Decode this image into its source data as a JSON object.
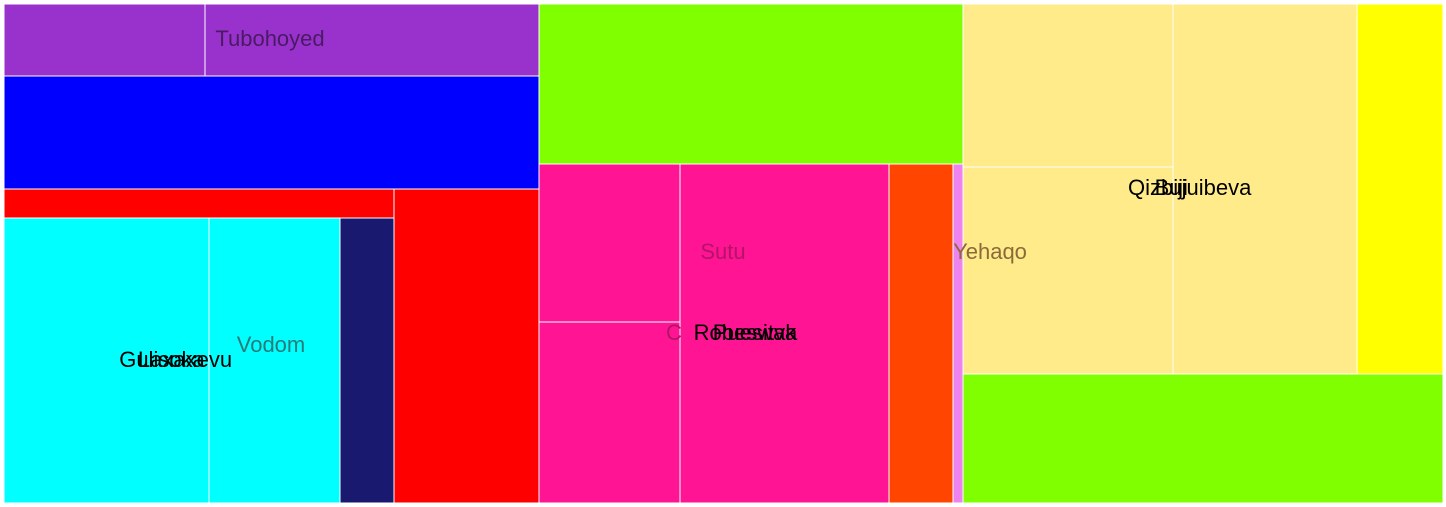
{
  "chart_data": {
    "type": "treemap",
    "title": "",
    "tiles": [
      {
        "name": "Tubohoyed-A",
        "label": "",
        "value": 7.3,
        "color": "#9932CC"
      },
      {
        "name": "Tubohoyed",
        "label": "Tubohoyed",
        "value": 11.9,
        "color": "#9932CC",
        "label_color": "#4a1a63"
      },
      {
        "name": "Blue",
        "label": "",
        "value": 27.0,
        "color": "#0000FF"
      },
      {
        "name": "Red-strip",
        "label": "",
        "value": 5.1,
        "color": "#FF0000"
      },
      {
        "name": "Red",
        "label": "",
        "value": 21.0,
        "color": "#FF0000"
      },
      {
        "name": "Gulisoka",
        "label": "Gulisoka",
        "value": 27.0,
        "color": "#00FFFF",
        "label_color": "#000000"
      },
      {
        "name": "Laxaxevu",
        "label": "Laxaxevu",
        "value": 0,
        "color": "#00FFFF",
        "label_color": "#000000"
      },
      {
        "name": "Vodom",
        "label": "Vodom",
        "value": 17.2,
        "color": "#00FFFF",
        "label_color": "#2a7a7a"
      },
      {
        "name": "Navy",
        "label": "",
        "value": 7.1,
        "color": "#191970"
      },
      {
        "name": "Green-top",
        "label": "",
        "value": 31.0,
        "color": "#7FFF00"
      },
      {
        "name": "Sutu",
        "label": "Sutu",
        "value": 10.2,
        "color": "#FF1493",
        "label_color": "#b31468"
      },
      {
        "name": "Pink-low",
        "label": "",
        "value": 12.3,
        "color": "#FF1493"
      },
      {
        "name": "Cb",
        "label": "C",
        "value": 0,
        "color": "#FF1493",
        "label_color": "#b31468"
      },
      {
        "name": "Robeswak",
        "label": "Robeswak",
        "value": 32.8,
        "color": "#FF1493",
        "label_color": "#000000"
      },
      {
        "name": "Puesitva",
        "label": "Puesitva",
        "value": 0,
        "color": "#FF1493",
        "label_color": "#000000"
      },
      {
        "name": "Orange",
        "label": "",
        "value": 10.1,
        "color": "#FF4500"
      },
      {
        "name": "Yehaqo",
        "label": "Yehaqo",
        "value": 1.4,
        "color": "#EE82EE",
        "label_color": "#8a6a3a"
      },
      {
        "name": "Qizbiji",
        "label": "Qizbiji",
        "value": 19.8,
        "color": "#FFEB8A",
        "label_color": "#000000"
      },
      {
        "name": "Buiuibeva",
        "label": "Bujuibeva",
        "value": 30.7,
        "color": "#FFEB8A",
        "label_color": "#000000"
      },
      {
        "name": "Yellow",
        "label": "",
        "value": 12.0,
        "color": "#FFFF00"
      },
      {
        "name": "Green-bottom",
        "label": "",
        "value": 22.4,
        "color": "#7FFF00"
      }
    ]
  }
}
